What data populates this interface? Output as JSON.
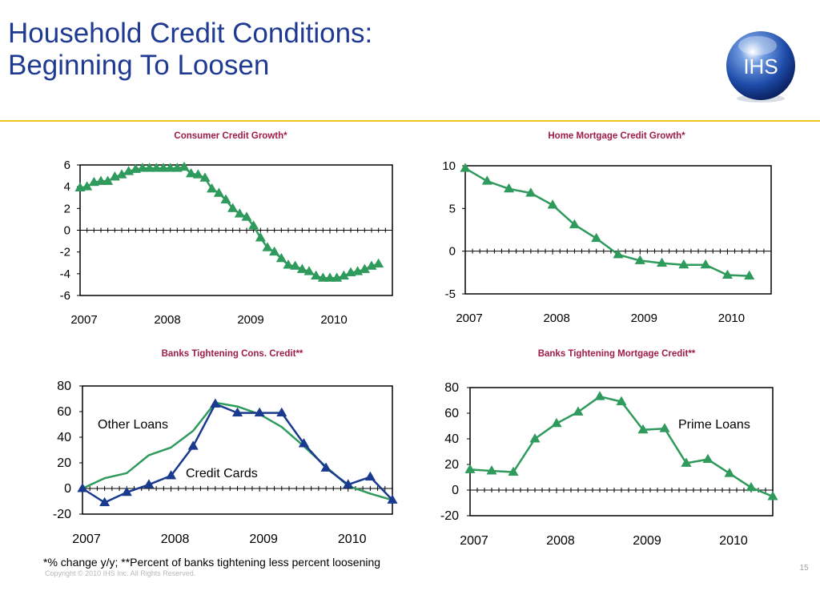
{
  "slide": {
    "title_line1": "Household Credit Conditions:",
    "title_line2": "Beginning To Loosen",
    "logo_text": "IHS",
    "footnote": "*% change y/y; **Percent of banks tightening less percent loosening",
    "copyright": "Copyright © 2010 IHS Inc. All Rights Reserved.",
    "page_number": "15"
  },
  "colors": {
    "title": "#1f3a93",
    "chart_title": "#9e1b4a",
    "green": "#2e9a5c",
    "navy": "#1a3a8f",
    "rule": "#f0c419"
  },
  "chart_data": [
    {
      "type": "line",
      "title": "Consumer Credit Growth*",
      "x_ticks": [
        "2007",
        "2008",
        "2009",
        "2010"
      ],
      "ylim": [
        -6,
        6
      ],
      "y_ticks": [
        6,
        4,
        2,
        0,
        -2,
        -4,
        -6
      ],
      "series": [
        {
          "color": "#2e9a5c",
          "marker": "triangle",
          "x": [
            2007.0,
            2007.083,
            2007.167,
            2007.25,
            2007.333,
            2007.417,
            2007.5,
            2007.583,
            2007.667,
            2007.75,
            2007.833,
            2007.917,
            2008.0,
            2008.083,
            2008.167,
            2008.25,
            2008.333,
            2008.417,
            2008.5,
            2008.583,
            2008.667,
            2008.75,
            2008.833,
            2008.917,
            2009.0,
            2009.083,
            2009.167,
            2009.25,
            2009.333,
            2009.417,
            2009.5,
            2009.583,
            2009.667,
            2009.75,
            2009.833,
            2009.917,
            2010.0,
            2010.083,
            2010.167,
            2010.25,
            2010.333,
            2010.417,
            2010.5,
            2010.583
          ],
          "values": [
            3.9,
            4.0,
            4.4,
            4.5,
            4.5,
            4.9,
            5.1,
            5.4,
            5.6,
            5.7,
            5.7,
            5.7,
            5.7,
            5.7,
            5.7,
            5.8,
            5.2,
            5.1,
            4.8,
            3.8,
            3.4,
            2.8,
            2.0,
            1.5,
            1.2,
            0.4,
            -0.7,
            -1.6,
            -2.0,
            -2.6,
            -3.2,
            -3.3,
            -3.6,
            -3.8,
            -4.2,
            -4.4,
            -4.4,
            -4.4,
            -4.2,
            -3.9,
            -3.8,
            -3.6,
            -3.3,
            -3.1
          ]
        }
      ]
    },
    {
      "type": "line",
      "title": "Home Mortgage Credit Growth*",
      "x_ticks": [
        "2007",
        "2008",
        "2009",
        "2010"
      ],
      "ylim": [
        -5,
        10
      ],
      "y_ticks": [
        10,
        5,
        0,
        -5
      ],
      "series": [
        {
          "color": "#2e9a5c",
          "marker": "triangle",
          "x": [
            2007.0,
            2007.25,
            2007.5,
            2007.75,
            2008.0,
            2008.25,
            2008.5,
            2008.75,
            2009.0,
            2009.25,
            2009.5,
            2009.75,
            2010.0,
            2010.25
          ],
          "values": [
            9.7,
            8.2,
            7.3,
            6.8,
            5.4,
            3.1,
            1.5,
            -0.4,
            -1.1,
            -1.4,
            -1.6,
            -1.6,
            -2.8,
            -2.9
          ]
        }
      ]
    },
    {
      "type": "line",
      "title": "Banks Tightening Cons. Credit**",
      "x_ticks": [
        "2007",
        "2008",
        "2009",
        "2010"
      ],
      "ylim": [
        -20,
        80
      ],
      "y_ticks": [
        80,
        60,
        40,
        20,
        0,
        -20
      ],
      "annotations": [
        "Other Loans",
        "Credit Cards"
      ],
      "series": [
        {
          "color": "#2e9a5c",
          "marker": "none",
          "x": [
            2007.0,
            2007.25,
            2007.5,
            2007.75,
            2008.0,
            2008.25,
            2008.5,
            2008.75,
            2009.0,
            2009.25,
            2009.5,
            2009.75,
            2010.0,
            2010.25,
            2010.5
          ],
          "values": [
            0,
            8,
            12,
            26,
            32,
            45,
            67,
            64,
            58,
            48,
            33,
            17,
            2,
            -4,
            -9
          ]
        },
        {
          "color": "#1a3a8f",
          "marker": "triangle",
          "x": [
            2007.0,
            2007.25,
            2007.5,
            2007.75,
            2008.0,
            2008.25,
            2008.5,
            2008.75,
            2009.0,
            2009.25,
            2009.5,
            2009.75,
            2010.0,
            2010.25,
            2010.5
          ],
          "values": [
            0,
            -11,
            -3,
            3,
            10,
            33,
            66,
            59,
            59,
            59,
            35,
            16,
            3,
            9,
            -9
          ]
        }
      ]
    },
    {
      "type": "line",
      "title": "Banks Tightening Mortgage Credit**",
      "x_ticks": [
        "2007",
        "2008",
        "2009",
        "2010"
      ],
      "ylim": [
        -20,
        80
      ],
      "y_ticks": [
        80,
        60,
        40,
        20,
        0,
        -20
      ],
      "annotations": [
        "Prime Loans"
      ],
      "series": [
        {
          "color": "#2e9a5c",
          "marker": "triangle",
          "x": [
            2007.0,
            2007.25,
            2007.5,
            2007.75,
            2008.0,
            2008.25,
            2008.5,
            2008.75,
            2009.0,
            2009.25,
            2009.5,
            2009.75,
            2010.0,
            2010.25,
            2010.5
          ],
          "values": [
            16,
            15,
            14,
            40,
            52,
            61,
            73,
            69,
            47,
            48,
            21,
            24,
            13,
            2,
            -5
          ]
        }
      ]
    }
  ]
}
